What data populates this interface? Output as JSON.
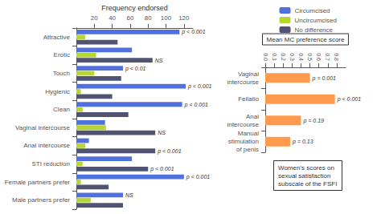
{
  "chart_data": [
    {
      "type": "bar",
      "orientation": "horizontal",
      "categories": [
        "Attractive",
        "Erotic",
        "Touch",
        "Hygienic",
        "Clean",
        "Vaginal intercourse",
        "Anal intercourse",
        "STI reduction",
        "Female partners prefer",
        "Male partners prefer"
      ],
      "series": [
        {
          "name": "Circumcised",
          "values": [
            115,
            62,
            52,
            122,
            118,
            32,
            14,
            62,
            120,
            52
          ]
        },
        {
          "name": "Uncircumcised",
          "values": [
            10,
            22,
            20,
            5,
            7,
            33,
            10,
            7,
            5,
            16
          ]
        },
        {
          "name": "No difference",
          "values": [
            46,
            85,
            50,
            40,
            58,
            88,
            88,
            80,
            36,
            52
          ]
        }
      ],
      "xlabel": "Frequency endorsed",
      "xlim": [
        0,
        130
      ],
      "xticks": [
        20,
        40,
        60,
        80,
        100,
        120
      ],
      "annotations": [
        {
          "text": "p < 0.001",
          "category": "Attractive"
        },
        {
          "text": "NS",
          "category": "Erotic"
        },
        {
          "text": "p < 0.01",
          "category": "Touch"
        },
        {
          "text": "p < 0.001",
          "category": "Hygienic"
        },
        {
          "text": "p < 0.001",
          "category": "Clean"
        },
        {
          "text": "NS",
          "category": "Vaginal intercourse"
        },
        {
          "text": "p < 0.001",
          "category": "Anal intercourse"
        },
        {
          "text": "p < 0.001",
          "category": "STI reduction"
        },
        {
          "text": "p < 0.001",
          "category": "Female partners prefer"
        },
        {
          "text": "NS",
          "category": "Male partners prefer"
        },
        {
          "text": "Women's scores on\nsexual satisfaction\nsubscale of the FSFI"
        }
      ],
      "legend": "upper right",
      "grid": false
    },
    {
      "type": "bar",
      "orientation": "horizontal",
      "categories": [
        "Vaginal\nintercourse",
        "Fellatio",
        "Anal\nintercourse",
        "Manual\nstimulation\nof penis"
      ],
      "values": [
        0.5,
        0.78,
        0.4,
        0.28
      ],
      "xlabel": "Mean MC preference score",
      "xlim": [
        0,
        0.9
      ],
      "xticks": [
        {
          "value": 0.0,
          "label": "0.0"
        },
        0.1,
        0.2,
        0.3,
        0.4,
        0.5,
        0.6,
        0.7,
        0.8
      ],
      "annotations": [
        {
          "text": "p = 0.001",
          "category": "Vaginal\nintercourse"
        },
        {
          "text": "p < 0.001",
          "category": "Fellatio"
        },
        {
          "text": "p = 0.19",
          "category": "Anal\nintercourse"
        },
        {
          "text": "p = 0.13",
          "category": "Manual\nstimulation\nof penis"
        }
      ],
      "grid": false
    }
  ]
}
